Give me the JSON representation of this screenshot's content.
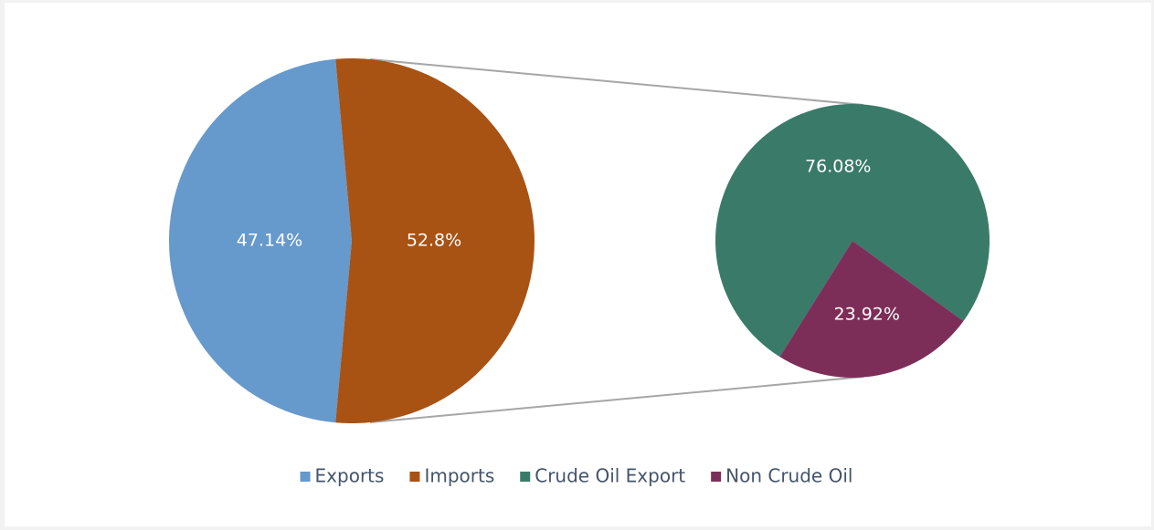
{
  "chart_data": [
    {
      "type": "pie",
      "categories": [
        "Exports",
        "Imports"
      ],
      "values": [
        47.14,
        52.8
      ],
      "value_labels": [
        "47.14%",
        "52.8%"
      ],
      "colors": [
        "#6699cc",
        "#a85214"
      ]
    },
    {
      "type": "pie",
      "categories": [
        "Crude Oil Export",
        "Non Crude Oil"
      ],
      "values": [
        76.08,
        23.92
      ],
      "value_labels": [
        "76.08%",
        "23.92%"
      ],
      "colors": [
        "#3a7a69",
        "#7d2e58"
      ]
    }
  ]
}
